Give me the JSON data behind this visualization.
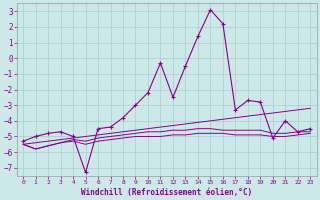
{
  "xlabel": "Windchill (Refroidissement éolien,°C)",
  "background_color": "#cce8e8",
  "grid_color": "#aacccc",
  "line_color": "#880088",
  "x": [
    0,
    1,
    2,
    3,
    4,
    5,
    6,
    7,
    8,
    9,
    10,
    11,
    12,
    13,
    14,
    15,
    16,
    17,
    18,
    19,
    20,
    21,
    22,
    23
  ],
  "line1": [
    -5.3,
    -5.0,
    -4.8,
    -4.7,
    -5.0,
    -7.3,
    -4.5,
    -4.4,
    -3.8,
    -3.0,
    -2.2,
    -0.3,
    -2.5,
    -0.5,
    1.4,
    3.1,
    2.2,
    -3.3,
    -2.7,
    -2.8,
    -5.1,
    -4.0,
    -4.7,
    -4.5
  ],
  "line2": [
    -5.5,
    -5.4,
    -5.3,
    -5.2,
    -5.1,
    -5.0,
    -4.9,
    -4.8,
    -4.7,
    -4.6,
    -4.5,
    -4.4,
    -4.3,
    -4.2,
    -4.1,
    -4.0,
    -3.9,
    -3.8,
    -3.7,
    -3.6,
    -3.5,
    -3.4,
    -3.3,
    -3.2
  ],
  "line3": [
    -5.5,
    -5.8,
    -5.6,
    -5.4,
    -5.2,
    -5.3,
    -5.1,
    -5.0,
    -4.9,
    -4.8,
    -4.7,
    -4.7,
    -4.6,
    -4.6,
    -4.5,
    -4.5,
    -4.6,
    -4.6,
    -4.6,
    -4.6,
    -4.8,
    -4.8,
    -4.7,
    -4.7
  ],
  "line4": [
    -5.5,
    -5.8,
    -5.6,
    -5.4,
    -5.3,
    -5.5,
    -5.3,
    -5.2,
    -5.1,
    -5.0,
    -5.0,
    -5.0,
    -4.9,
    -4.9,
    -4.8,
    -4.8,
    -4.8,
    -4.9,
    -4.9,
    -4.9,
    -5.0,
    -5.0,
    -4.9,
    -4.8
  ],
  "ylim": [
    -7.5,
    3.5
  ],
  "yticks": [
    -7,
    -6,
    -5,
    -4,
    -3,
    -2,
    -1,
    0,
    1,
    2,
    3
  ],
  "xticks": [
    0,
    1,
    2,
    3,
    4,
    5,
    6,
    7,
    8,
    9,
    10,
    11,
    12,
    13,
    14,
    15,
    16,
    17,
    18,
    19,
    20,
    21,
    22,
    23
  ]
}
